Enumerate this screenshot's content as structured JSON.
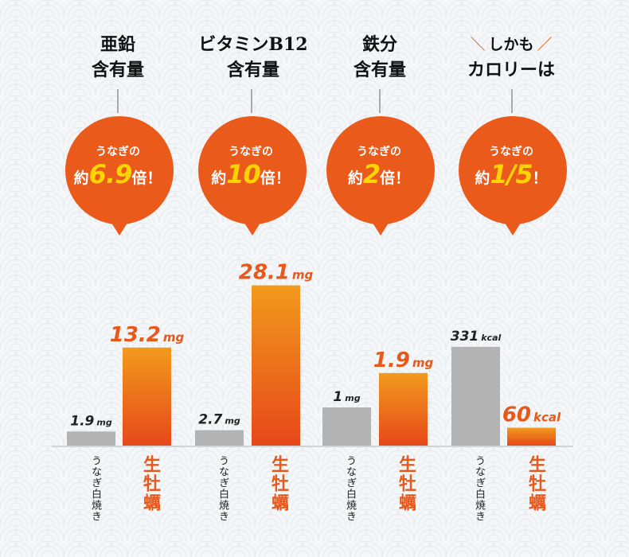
{
  "colors": {
    "orange_top": "#f29a1c",
    "orange_bottom": "#e6481a",
    "gray": "#b3b3b3",
    "bubble": "#ea5a1b",
    "number_yellow": "#ffd400"
  },
  "headers": [
    {
      "line1": "亜鉛",
      "line2": "含有量"
    },
    {
      "line1": "ビタミンB12",
      "line2": "含有量"
    },
    {
      "line1": "鉄分",
      "line2": "含有量"
    },
    {
      "line1": "しかも",
      "line2": "カロリーは"
    }
  ],
  "bubbles": [
    {
      "line1": "うなぎの",
      "pre": "約",
      "num": "6.9",
      "post": "倍！"
    },
    {
      "line1": "うなぎの",
      "pre": "約",
      "num": "10",
      "post": "倍！"
    },
    {
      "line1": "うなぎの",
      "pre": "約",
      "num": "2",
      "post": "倍！"
    },
    {
      "line1": "うなぎの",
      "pre": "約",
      "num": "1/5",
      "post": "！"
    }
  ],
  "xlabels": {
    "eel": "うなぎ白焼き",
    "oyster": "生牡蠣"
  },
  "chart_data": {
    "type": "bar",
    "categories": [
      "亜鉛含有量",
      "ビタミンB12含有量",
      "鉄分含有量",
      "カロリー"
    ],
    "series": [
      {
        "name": "うなぎ白焼き",
        "values": [
          1.9,
          2.7,
          1,
          331
        ],
        "labels": [
          "1.9",
          "2.7",
          "1",
          "331"
        ]
      },
      {
        "name": "生牡蠣",
        "values": [
          13.2,
          28.1,
          1.9,
          60
        ],
        "labels": [
          "13.2",
          "28.1",
          "1.9",
          "60"
        ]
      }
    ],
    "units": [
      "mg",
      "mg",
      "mg",
      "kcal"
    ],
    "ylim": [
      [
        0,
        15
      ],
      [
        0,
        30
      ],
      [
        0,
        2.5
      ],
      [
        0,
        400
      ]
    ]
  }
}
